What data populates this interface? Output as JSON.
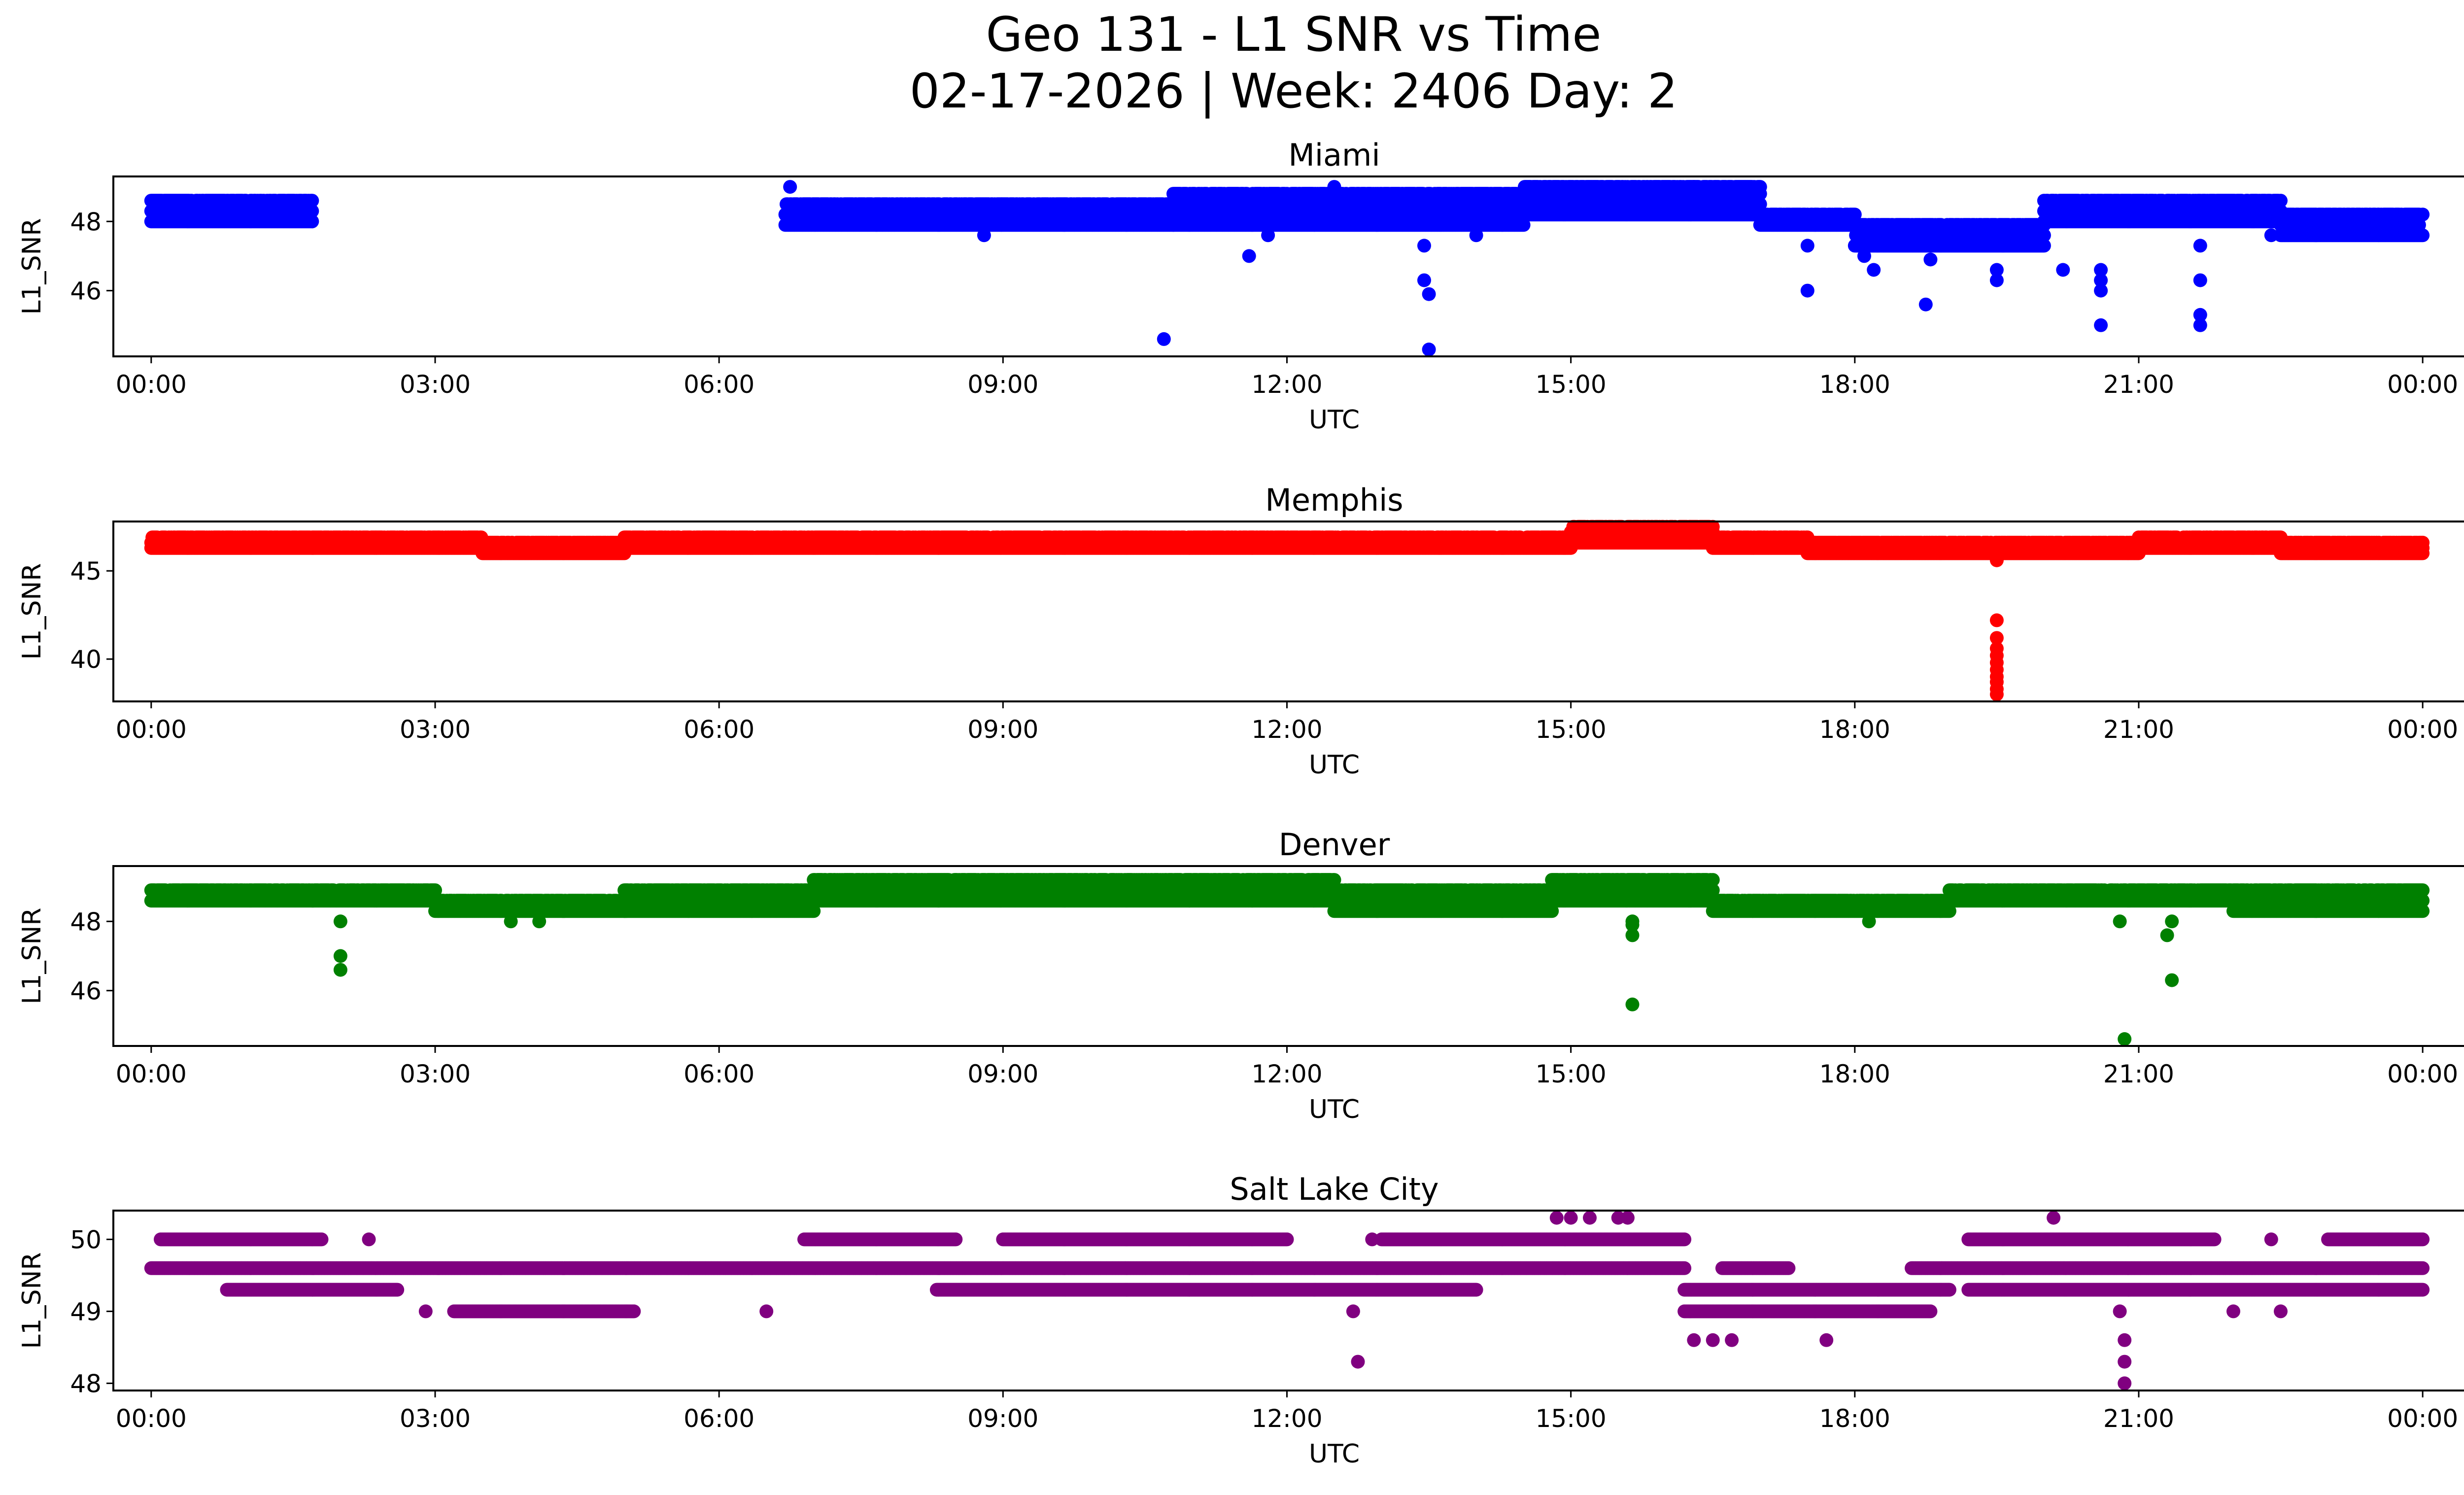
{
  "figure": {
    "title_line1": "Geo 131 - L1 SNR vs Time",
    "title_line2": "02-17-2026 | Week: 2406 Day: 2"
  },
  "chart_data": [
    {
      "type": "scatter",
      "title": "Miami",
      "xlabel": "UTC",
      "ylabel": "L1_SNR",
      "color": "#0000ff",
      "xlim": [
        -0.4,
        25.4
      ],
      "ylim": [
        44.1,
        49.3
      ],
      "xticks": [
        0,
        3,
        6,
        9,
        12,
        15,
        18,
        21,
        24
      ],
      "xtick_labels": [
        "00:00",
        "03:00",
        "06:00",
        "09:00",
        "12:00",
        "15:00",
        "18:00",
        "21:00",
        "00:00"
      ],
      "yticks": [
        46,
        48
      ],
      "ytick_labels": [
        "46",
        "48"
      ],
      "series": [
        {
          "name": "Miami",
          "segments": [
            {
              "x": [
                0.0,
                1.7
              ],
              "levels": [
                48.0,
                48.3,
                48.6
              ]
            },
            {
              "x": [
                6.7,
                10.8
              ],
              "levels": [
                47.9,
                48.2,
                48.5
              ]
            },
            {
              "x": [
                10.8,
                14.5
              ],
              "levels": [
                47.9,
                48.2,
                48.5,
                48.8
              ]
            },
            {
              "x": [
                14.5,
                17.0
              ],
              "levels": [
                48.2,
                48.5,
                48.8,
                49.0
              ]
            },
            {
              "x": [
                17.0,
                18.0
              ],
              "levels": [
                47.9,
                48.2
              ]
            },
            {
              "x": [
                18.0,
                20.0
              ],
              "levels": [
                47.3,
                47.6,
                47.9
              ]
            },
            {
              "x": [
                20.0,
                22.5
              ],
              "levels": [
                48.0,
                48.3,
                48.6
              ]
            },
            {
              "x": [
                22.5,
                24.0
              ],
              "levels": [
                47.6,
                47.9,
                48.2
              ]
            }
          ],
          "outliers": [
            [
              6.75,
              49.0
            ],
            [
              8.8,
              47.6
            ],
            [
              10.7,
              44.6
            ],
            [
              11.6,
              47.0
            ],
            [
              11.8,
              47.6
            ],
            [
              12.5,
              49.0
            ],
            [
              13.45,
              46.3
            ],
            [
              13.5,
              45.9
            ],
            [
              13.5,
              44.3
            ],
            [
              13.45,
              47.3
            ],
            [
              14.0,
              47.6
            ],
            [
              14.9,
              49.0
            ],
            [
              16.3,
              49.0
            ],
            [
              17.5,
              46.0
            ],
            [
              17.5,
              47.3
            ],
            [
              18.2,
              46.6
            ],
            [
              18.1,
              47.0
            ],
            [
              18.75,
              45.6
            ],
            [
              18.8,
              46.9
            ],
            [
              19.5,
              46.3
            ],
            [
              19.5,
              46.6
            ],
            [
              20.2,
              46.6
            ],
            [
              20.6,
              46.0
            ],
            [
              20.6,
              46.3
            ],
            [
              20.6,
              45.0
            ],
            [
              20.6,
              46.6
            ],
            [
              21.65,
              45.0
            ],
            [
              21.65,
              45.3
            ],
            [
              21.65,
              46.3
            ],
            [
              21.65,
              47.3
            ],
            [
              22.4,
              47.6
            ]
          ]
        }
      ]
    },
    {
      "type": "scatter",
      "title": "Memphis",
      "xlabel": "UTC",
      "ylabel": "L1_SNR",
      "color": "#ff0000",
      "xlim": [
        -0.4,
        25.4
      ],
      "ylim": [
        37.6,
        47.8
      ],
      "xticks": [
        0,
        3,
        6,
        9,
        12,
        15,
        18,
        21,
        24
      ],
      "xtick_labels": [
        "00:00",
        "03:00",
        "06:00",
        "09:00",
        "12:00",
        "15:00",
        "18:00",
        "21:00",
        "00:00"
      ],
      "yticks": [
        40,
        45
      ],
      "ytick_labels": [
        "40",
        "45"
      ],
      "series": [
        {
          "name": "Memphis",
          "segments": [
            {
              "x": [
                0.0,
                3.5
              ],
              "levels": [
                46.3,
                46.6,
                46.9
              ]
            },
            {
              "x": [
                3.5,
                5.0
              ],
              "levels": [
                46.0,
                46.3,
                46.6
              ]
            },
            {
              "x": [
                5.0,
                15.0
              ],
              "levels": [
                46.3,
                46.6,
                46.9
              ]
            },
            {
              "x": [
                15.0,
                16.5
              ],
              "levels": [
                46.6,
                46.9,
                47.2,
                47.5
              ]
            },
            {
              "x": [
                16.5,
                17.5
              ],
              "levels": [
                46.3,
                46.6,
                46.9
              ]
            },
            {
              "x": [
                17.5,
                21.0
              ],
              "levels": [
                46.0,
                46.3,
                46.6
              ]
            },
            {
              "x": [
                21.0,
                22.5
              ],
              "levels": [
                46.3,
                46.6,
                46.9
              ]
            },
            {
              "x": [
                22.5,
                24.0
              ],
              "levels": [
                46.0,
                46.3,
                46.6
              ]
            }
          ],
          "outliers": [
            [
              19.5,
              42.2
            ],
            [
              19.5,
              41.2
            ],
            [
              19.5,
              40.6
            ],
            [
              19.5,
              40.2
            ],
            [
              19.5,
              39.8
            ],
            [
              19.5,
              39.4
            ],
            [
              19.5,
              39.0
            ],
            [
              19.5,
              38.7
            ],
            [
              19.5,
              38.3
            ],
            [
              19.5,
              38.0
            ],
            [
              19.5,
              45.6
            ]
          ]
        }
      ]
    },
    {
      "type": "scatter",
      "title": "Denver",
      "xlabel": "UTC",
      "ylabel": "L1_SNR",
      "color": "#008000",
      "xlim": [
        -0.4,
        25.4
      ],
      "ylim": [
        44.4,
        49.6
      ],
      "xticks": [
        0,
        3,
        6,
        9,
        12,
        15,
        18,
        21,
        24
      ],
      "xtick_labels": [
        "00:00",
        "03:00",
        "06:00",
        "09:00",
        "12:00",
        "15:00",
        "18:00",
        "21:00",
        "00:00"
      ],
      "yticks": [
        46,
        48
      ],
      "ytick_labels": [
        "46",
        "48"
      ],
      "series": [
        {
          "name": "Denver",
          "segments": [
            {
              "x": [
                0.0,
                3.0
              ],
              "levels": [
                48.6,
                48.9
              ]
            },
            {
              "x": [
                3.0,
                5.0
              ],
              "levels": [
                48.3,
                48.6
              ]
            },
            {
              "x": [
                5.0,
                7.0
              ],
              "levels": [
                48.3,
                48.6,
                48.9
              ]
            },
            {
              "x": [
                7.0,
                12.5
              ],
              "levels": [
                48.6,
                48.9,
                49.2
              ]
            },
            {
              "x": [
                12.5,
                14.8
              ],
              "levels": [
                48.3,
                48.6,
                48.9
              ]
            },
            {
              "x": [
                14.8,
                16.5
              ],
              "levels": [
                48.6,
                48.9,
                49.2
              ]
            },
            {
              "x": [
                16.5,
                19.0
              ],
              "levels": [
                48.3,
                48.6
              ]
            },
            {
              "x": [
                19.0,
                22.0
              ],
              "levels": [
                48.6,
                48.9
              ]
            },
            {
              "x": [
                22.0,
                24.0
              ],
              "levels": [
                48.3,
                48.6,
                48.9
              ]
            }
          ],
          "outliers": [
            [
              2.0,
              48.0
            ],
            [
              2.0,
              47.0
            ],
            [
              2.0,
              46.6
            ],
            [
              3.8,
              48.0
            ],
            [
              4.1,
              48.0
            ],
            [
              15.65,
              48.0
            ],
            [
              15.65,
              47.6
            ],
            [
              15.65,
              47.9
            ],
            [
              15.65,
              45.6
            ],
            [
              18.15,
              48.0
            ],
            [
              20.8,
              48.0
            ],
            [
              20.85,
              44.6
            ],
            [
              21.3,
              47.6
            ],
            [
              21.35,
              48.0
            ],
            [
              21.35,
              46.3
            ]
          ]
        }
      ]
    },
    {
      "type": "scatter",
      "title": "Salt Lake City",
      "xlabel": "UTC",
      "ylabel": "L1_SNR",
      "color": "#800080",
      "xlim": [
        -0.4,
        25.4
      ],
      "ylim": [
        47.9,
        50.4
      ],
      "xticks": [
        0,
        3,
        6,
        9,
        12,
        15,
        18,
        21,
        24
      ],
      "xtick_labels": [
        "00:00",
        "03:00",
        "06:00",
        "09:00",
        "12:00",
        "15:00",
        "18:00",
        "21:00",
        "00:00"
      ],
      "yticks": [
        48,
        49,
        50
      ],
      "ytick_labels": [
        "48",
        "49",
        "50"
      ],
      "series": [
        {
          "name": "Salt Lake City",
          "segments": [
            {
              "x": [
                0.0,
                16.2
              ],
              "levels": [
                49.6
              ]
            },
            {
              "x": [
                0.1,
                1.8
              ],
              "levels": [
                50.0
              ]
            },
            {
              "x": [
                0.8,
                2.6
              ],
              "levels": [
                49.3
              ]
            },
            {
              "x": [
                3.2,
                5.1
              ],
              "levels": [
                49.0
              ]
            },
            {
              "x": [
                6.9,
                8.5
              ],
              "levels": [
                50.0
              ]
            },
            {
              "x": [
                8.3,
                14.0
              ],
              "levels": [
                49.3
              ]
            },
            {
              "x": [
                9.0,
                12.0
              ],
              "levels": [
                50.0
              ]
            },
            {
              "x": [
                13.0,
                16.2
              ],
              "levels": [
                50.0
              ]
            },
            {
              "x": [
                16.2,
                19.0
              ],
              "levels": [
                49.3
              ]
            },
            {
              "x": [
                16.2,
                18.8
              ],
              "levels": [
                49.0
              ]
            },
            {
              "x": [
                16.6,
                17.3
              ],
              "levels": [
                49.6
              ]
            },
            {
              "x": [
                18.6,
                24.0
              ],
              "levels": [
                49.6
              ]
            },
            {
              "x": [
                19.2,
                21.8
              ],
              "levels": [
                50.0
              ]
            },
            {
              "x": [
                19.2,
                24.0
              ],
              "levels": [
                49.3
              ]
            },
            {
              "x": [
                23.0,
                24.0
              ],
              "levels": [
                50.0
              ]
            }
          ],
          "outliers": [
            [
              2.3,
              50.0
            ],
            [
              2.9,
              49.0
            ],
            [
              6.5,
              49.0
            ],
            [
              12.7,
              49.0
            ],
            [
              12.75,
              48.3
            ],
            [
              12.9,
              50.0
            ],
            [
              14.85,
              50.3
            ],
            [
              15.0,
              50.3
            ],
            [
              15.2,
              50.3
            ],
            [
              15.5,
              50.3
            ],
            [
              15.6,
              50.3
            ],
            [
              16.3,
              48.6
            ],
            [
              16.5,
              48.6
            ],
            [
              16.7,
              48.6
            ],
            [
              17.7,
              48.6
            ],
            [
              20.1,
              50.3
            ],
            [
              20.8,
              49.0
            ],
            [
              20.85,
              48.6
            ],
            [
              20.85,
              48.3
            ],
            [
              20.85,
              48.0
            ],
            [
              22.4,
              50.0
            ],
            [
              22.0,
              49.0
            ],
            [
              22.5,
              49.0
            ]
          ]
        }
      ]
    }
  ]
}
